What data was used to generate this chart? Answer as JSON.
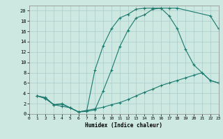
{
  "xlabel": "Humidex (Indice chaleur)",
  "bg_color": "#cce8e0",
  "grid_color": "#aacccc",
  "line_color": "#1a7a6e",
  "xlim": [
    0,
    23
  ],
  "ylim": [
    0,
    21
  ],
  "xticks": [
    0,
    1,
    2,
    3,
    4,
    5,
    6,
    7,
    8,
    9,
    10,
    11,
    12,
    13,
    14,
    15,
    16,
    17,
    18,
    19,
    20,
    21,
    22,
    23
  ],
  "yticks": [
    0,
    2,
    4,
    6,
    8,
    10,
    12,
    14,
    16,
    18,
    20
  ],
  "curve_top_x": [
    1,
    2,
    3,
    4,
    5,
    6,
    7,
    8,
    9,
    10,
    11,
    12,
    13,
    14,
    15,
    16,
    17,
    18,
    22,
    23
  ],
  "curve_top_y": [
    3.5,
    3.2,
    1.8,
    1.9,
    1.2,
    0.4,
    0.5,
    0.8,
    4.5,
    8.5,
    13.0,
    16.2,
    18.6,
    19.2,
    20.3,
    20.5,
    20.5,
    20.5,
    19.0,
    16.5
  ],
  "curve_mid_x": [
    1,
    2,
    3,
    4,
    5,
    6,
    7,
    8,
    9,
    10,
    11,
    12,
    13,
    14,
    15,
    16,
    17,
    18,
    19,
    20,
    21,
    22,
    23
  ],
  "curve_mid_y": [
    3.5,
    3.0,
    1.8,
    2.0,
    1.2,
    0.4,
    0.6,
    8.5,
    13.2,
    16.5,
    18.6,
    19.3,
    20.3,
    20.5,
    20.5,
    20.5,
    19.0,
    16.5,
    12.5,
    9.5,
    8.0,
    6.5,
    6.0
  ],
  "curve_bot_x": [
    1,
    2,
    3,
    4,
    5,
    6,
    7,
    8,
    9,
    10,
    11,
    12,
    13,
    14,
    15,
    16,
    17,
    18,
    19,
    20,
    21,
    22,
    23
  ],
  "curve_bot_y": [
    3.5,
    3.0,
    1.8,
    1.5,
    1.2,
    0.4,
    0.7,
    1.0,
    1.3,
    1.8,
    2.2,
    2.8,
    3.5,
    4.2,
    4.8,
    5.5,
    6.0,
    6.5,
    7.0,
    7.5,
    8.0,
    6.5,
    6.0
  ]
}
